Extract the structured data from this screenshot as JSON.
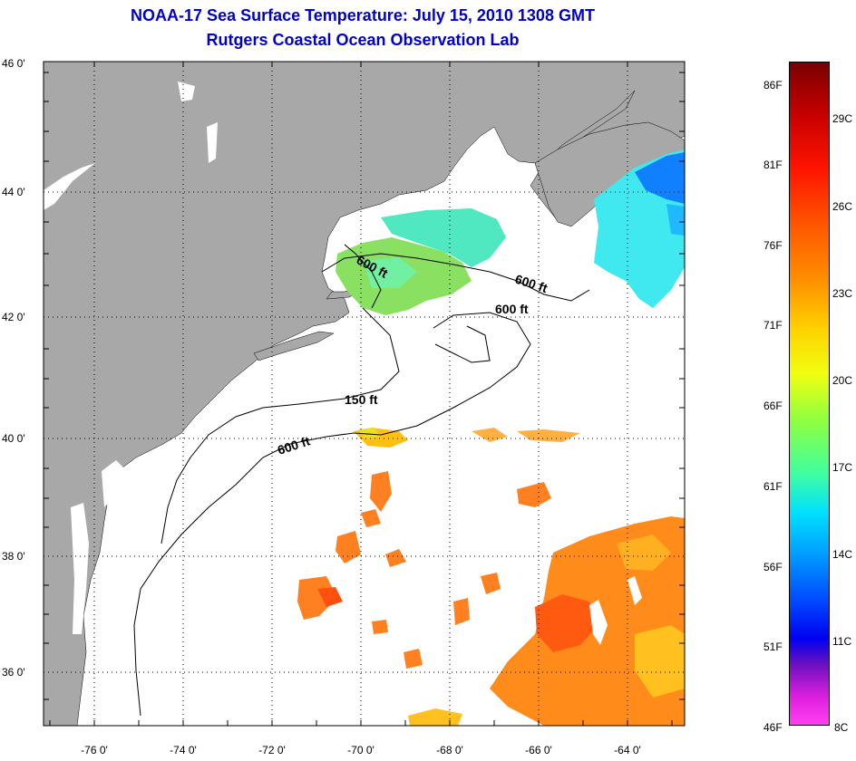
{
  "title": {
    "line1": "NOAA-17 Sea Surface Temperature:  July 15, 2010 1308 GMT",
    "line2": "Rutgers Coastal Ocean Observation Lab"
  },
  "map": {
    "lon_ticks": [
      "-76 0'",
      "-74 0'",
      "-72 0'",
      "-70 0'",
      "-68 0'",
      "-66 0'",
      "-64 0'"
    ],
    "lat_ticks": [
      "46 0'",
      "44 0'",
      "42 0'",
      "40 0'",
      "38 0'",
      "36 0'"
    ],
    "contour_labels": [
      "600 ft",
      "600 ft",
      "600 ft",
      "150 ft",
      "600 ft"
    ]
  },
  "colorbar": {
    "fahrenheit": [
      "86F",
      "81F",
      "76F",
      "71F",
      "66F",
      "61F",
      "56F",
      "51F",
      "46F"
    ],
    "celsius": [
      "29C",
      "26C",
      "23C",
      "20C",
      "17C",
      "14C",
      "11C",
      "8C"
    ]
  },
  "colors": {
    "title": "#0000c8",
    "land": "#a8a8a8"
  }
}
